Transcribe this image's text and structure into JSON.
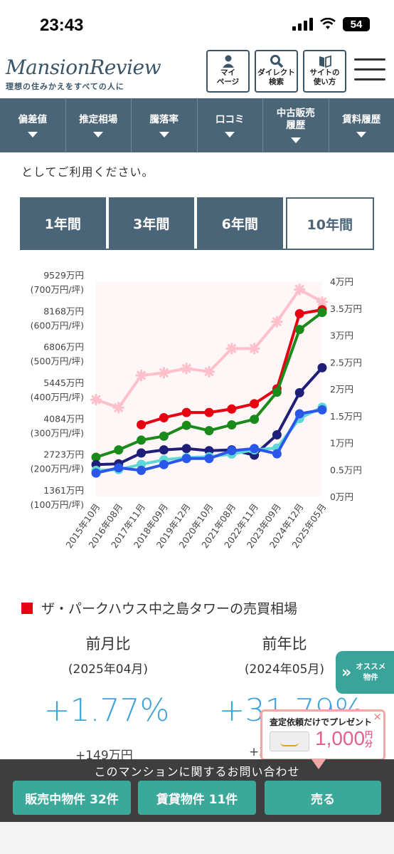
{
  "status": {
    "time": "23:43",
    "battery": "54"
  },
  "header": {
    "logo": "MansionReview",
    "tagline": "理想の住みかえをすべての人に",
    "buttons": [
      {
        "label": "マイ\nページ",
        "icon": "person-icon"
      },
      {
        "label": "ダイレクト\n検索",
        "icon": "search-icon"
      },
      {
        "label": "サイトの\n使い方",
        "icon": "book-icon"
      }
    ]
  },
  "nav": [
    {
      "label": "偏差値"
    },
    {
      "label": "推定相場"
    },
    {
      "label": "騰落率"
    },
    {
      "label": "口コミ"
    },
    {
      "label": "中古販売\n履歴"
    },
    {
      "label": "賃料履歴"
    }
  ],
  "intro_text": "としてご利用ください。",
  "tabs": [
    {
      "label": "1年間",
      "active": false
    },
    {
      "label": "3年間",
      "active": false
    },
    {
      "label": "6年間",
      "active": false
    },
    {
      "label": "10年間",
      "active": true
    }
  ],
  "chart_data": {
    "type": "line",
    "categories": [
      "2015年10月",
      "2016年08月",
      "2017年11月",
      "2018年09月",
      "2019年12月",
      "2020年10月",
      "2021年08月",
      "2022年11月",
      "2023年09月",
      "2024年12月",
      "2025年05月"
    ],
    "y_left_ticks": [
      {
        "value": 9529,
        "label": "9529万円",
        "sub": "(700万円/坪)"
      },
      {
        "value": 8168,
        "label": "8168万円",
        "sub": "(600万円/坪)"
      },
      {
        "value": 6806,
        "label": "6806万円",
        "sub": "(500万円/坪)"
      },
      {
        "value": 5445,
        "label": "5445万円",
        "sub": "(400万円/坪)"
      },
      {
        "value": 4084,
        "label": "4084万円",
        "sub": "(300万円/坪)"
      },
      {
        "value": 2723,
        "label": "2723万円",
        "sub": "(200万円/坪)"
      },
      {
        "value": 1361,
        "label": "1361万円",
        "sub": "(100万円/坪)"
      }
    ],
    "y_right_ticks": [
      "4万円",
      "3.5万円",
      "3万円",
      "2.5万円",
      "2万円",
      "1.5万円",
      "1万円",
      "0.5万円",
      "0万円"
    ],
    "ylim_left": [
      1361,
      9529
    ],
    "ylim_right": [
      0,
      4
    ],
    "series": [
      {
        "color": "#ffc0cb",
        "marker": "star",
        "axis": "right",
        "values": [
          1.8,
          1.65,
          2.25,
          2.3,
          2.38,
          2.32,
          2.75,
          2.75,
          3.25,
          3.85,
          3.62
        ]
      },
      {
        "color": "#e60012",
        "marker": "circle",
        "axis": "left",
        "values": [
          null,
          null,
          4084,
          4350,
          4550,
          4550,
          4680,
          4880,
          5445,
          8300,
          8450
        ]
      },
      {
        "color": "#1a8a1a",
        "marker": "circle",
        "axis": "left",
        "values": [
          2850,
          3130,
          3500,
          3650,
          4060,
          3860,
          4080,
          4290,
          5320,
          7700,
          8350
        ]
      },
      {
        "color": "#1f1f7a",
        "marker": "circle",
        "axis": "left",
        "values": [
          2570,
          2600,
          3010,
          3130,
          3180,
          3100,
          3130,
          2930,
          3700,
          5300,
          6250
        ]
      },
      {
        "color": "#5fd7d7",
        "marker": "circle",
        "axis": "left",
        "values": [
          2350,
          2380,
          2580,
          2750,
          2840,
          2870,
          2970,
          3130,
          3200,
          4320,
          4750
        ]
      },
      {
        "color": "#2b57e8",
        "marker": "circle",
        "axis": "left",
        "values": [
          2250,
          2450,
          2350,
          2570,
          2800,
          2800,
          3100,
          3180,
          2980,
          4500,
          4650
        ]
      }
    ]
  },
  "market": {
    "title": "ザ・パークハウス中之島タワーの売買相場",
    "mom_head": "前月比",
    "mom_period": "(2025年04月)",
    "mom_value": "+1.77%",
    "mom_amount": "+149万円",
    "yoy_head": "前年比",
    "yoy_period": "(2024年05月)",
    "yoy_value": "+31.79%",
    "yoy_amount": "+2"
  },
  "osusume": {
    "label": "オススメ\n物件"
  },
  "promo": {
    "title": "査定依頼だけでプレゼント",
    "amount": "1,000",
    "unit": "円\n分"
  },
  "bottom": {
    "inquiry": "このマンションに関するお問い合わせ",
    "sale": "販売中物件 32件",
    "rent": "賃貸物件 11件",
    "sell": "売る"
  }
}
